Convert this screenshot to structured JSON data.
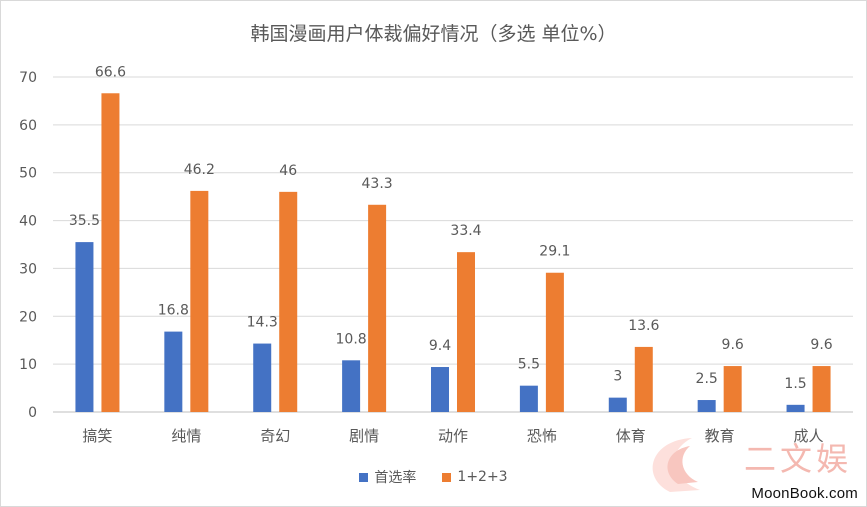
{
  "chart_data": {
    "type": "bar",
    "title": "韩国漫画用户体裁偏好情况（多选 单位%）",
    "categories": [
      "搞笑",
      "纯情",
      "奇幻",
      "剧情",
      "动作",
      "恐怖",
      "体育",
      "教育",
      "成人"
    ],
    "series": [
      {
        "name": "首选率",
        "color": "#4472c4",
        "values": [
          35.5,
          16.8,
          14.3,
          10.8,
          9.4,
          5.5,
          3,
          2.5,
          1.5
        ]
      },
      {
        "name": "1+2+3",
        "color": "#ed7d31",
        "values": [
          66.6,
          46.2,
          46,
          43.3,
          33.4,
          29.1,
          13.6,
          9.6,
          9.6
        ]
      }
    ],
    "ylim": [
      0,
      70
    ],
    "yticks": [
      0,
      10,
      20,
      30,
      40,
      50,
      60,
      70
    ],
    "grid": true,
    "legend": "bottom"
  },
  "watermark": {
    "cn": "二文娱",
    "site": "MoonBook.com"
  }
}
